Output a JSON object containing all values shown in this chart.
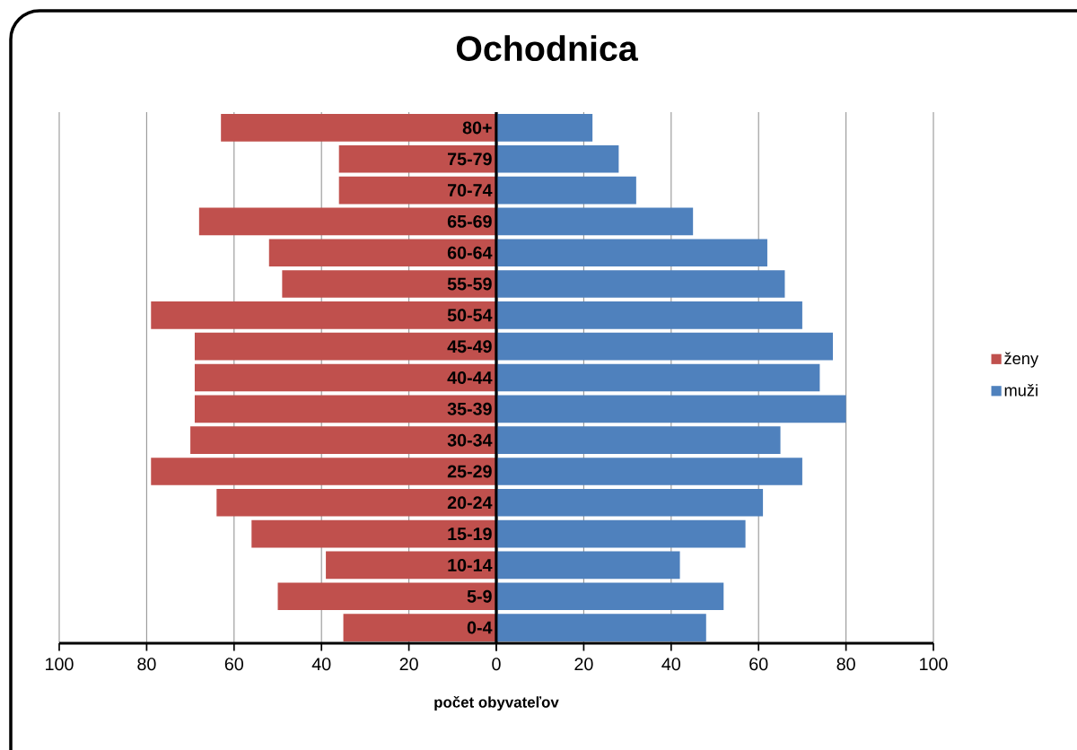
{
  "chart_data": [
    {
      "type": "bar",
      "orientation": "horizontal",
      "title": "Ochodnica",
      "xlabel": "počet obyvateľov",
      "categories": [
        "80+",
        "75-79",
        "70-74",
        "65-69",
        "60-64",
        "55-59",
        "50-54",
        "45-49",
        "40-44",
        "35-39",
        "30-34",
        "25-29",
        "20-24",
        "15-19",
        "10-14",
        "5-9",
        "0-4"
      ],
      "series": [
        {
          "name": "ženy",
          "color": "#c0504d",
          "values": [
            63,
            36,
            36,
            68,
            52,
            49,
            79,
            69,
            69,
            69,
            70,
            79,
            64,
            56,
            39,
            50,
            35
          ]
        }
      ],
      "xlim": [
        100,
        0
      ],
      "xticks": [
        100,
        80,
        60,
        40,
        20,
        0
      ],
      "grid": "x",
      "legend": "right"
    },
    {
      "type": "bar",
      "orientation": "horizontal",
      "categories": [
        null,
        null,
        null,
        null,
        null,
        null,
        null,
        null,
        null,
        null,
        null,
        null,
        null,
        null,
        null,
        null,
        null
      ],
      "series": [
        {
          "name": "muži",
          "color": "#4f81bd",
          "values": [
            22,
            28,
            32,
            45,
            62,
            66,
            70,
            77,
            74,
            80,
            65,
            70,
            61,
            57,
            42,
            52,
            48
          ]
        }
      ],
      "xlim": [
        0,
        100
      ],
      "xticks": [
        {
          "value": 0,
          "label": null
        },
        20,
        40,
        60,
        80,
        100
      ],
      "grid": "x",
      "legend": "right",
      "tick_labels": "x"
    }
  ]
}
